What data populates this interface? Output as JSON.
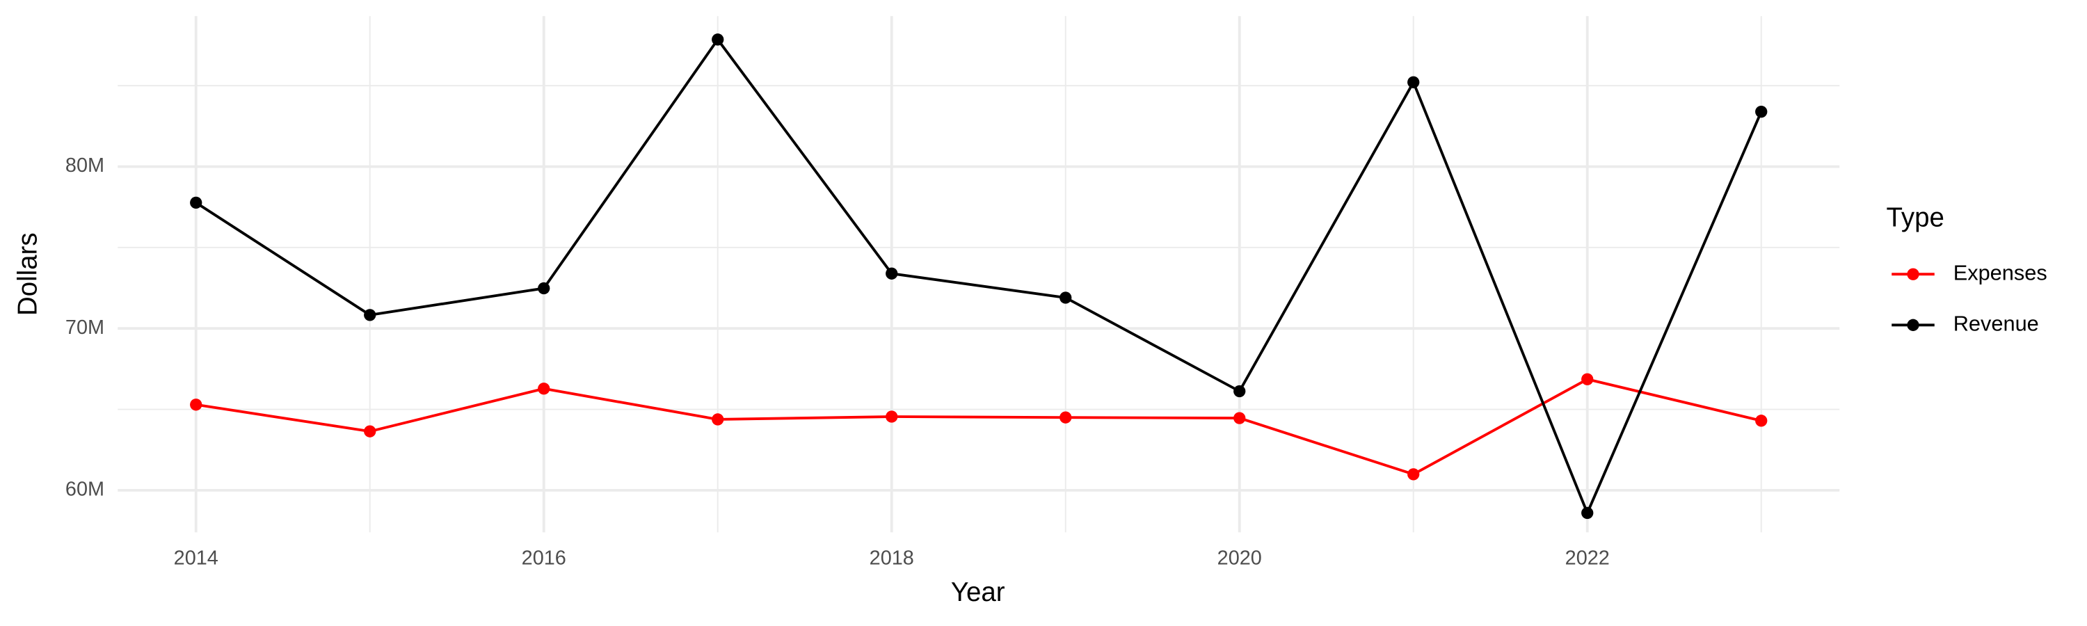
{
  "chart_data": {
    "type": "line",
    "x_label": "Year",
    "y_label": "Dollars",
    "legend_title": "Type",
    "x": [
      2014,
      2015,
      2016,
      2017,
      2018,
      2019,
      2020,
      2021,
      2022,
      2023
    ],
    "series": [
      {
        "name": "Expenses",
        "color": "#ff0000",
        "values": [
          65290000,
          63640000,
          66280000,
          64380000,
          64550000,
          64500000,
          64460000,
          60990000,
          66860000,
          64300000
        ]
      },
      {
        "name": "Revenue",
        "color": "#000000",
        "values": [
          77770000,
          70830000,
          72480000,
          87850000,
          73390000,
          71900000,
          66120000,
          85210000,
          58600000,
          83390000
        ]
      }
    ],
    "xlim": [
      2013.55,
      2023.45
    ],
    "xticks": [
      2014,
      2016,
      2018,
      2020,
      2022
    ],
    "ylim": [
      57400000,
      89300000
    ],
    "yticks": [
      {
        "value": 60000000,
        "label": "60M"
      },
      {
        "value": 70000000,
        "label": "70M"
      },
      {
        "value": 80000000,
        "label": "80M"
      }
    ],
    "grid": true
  }
}
